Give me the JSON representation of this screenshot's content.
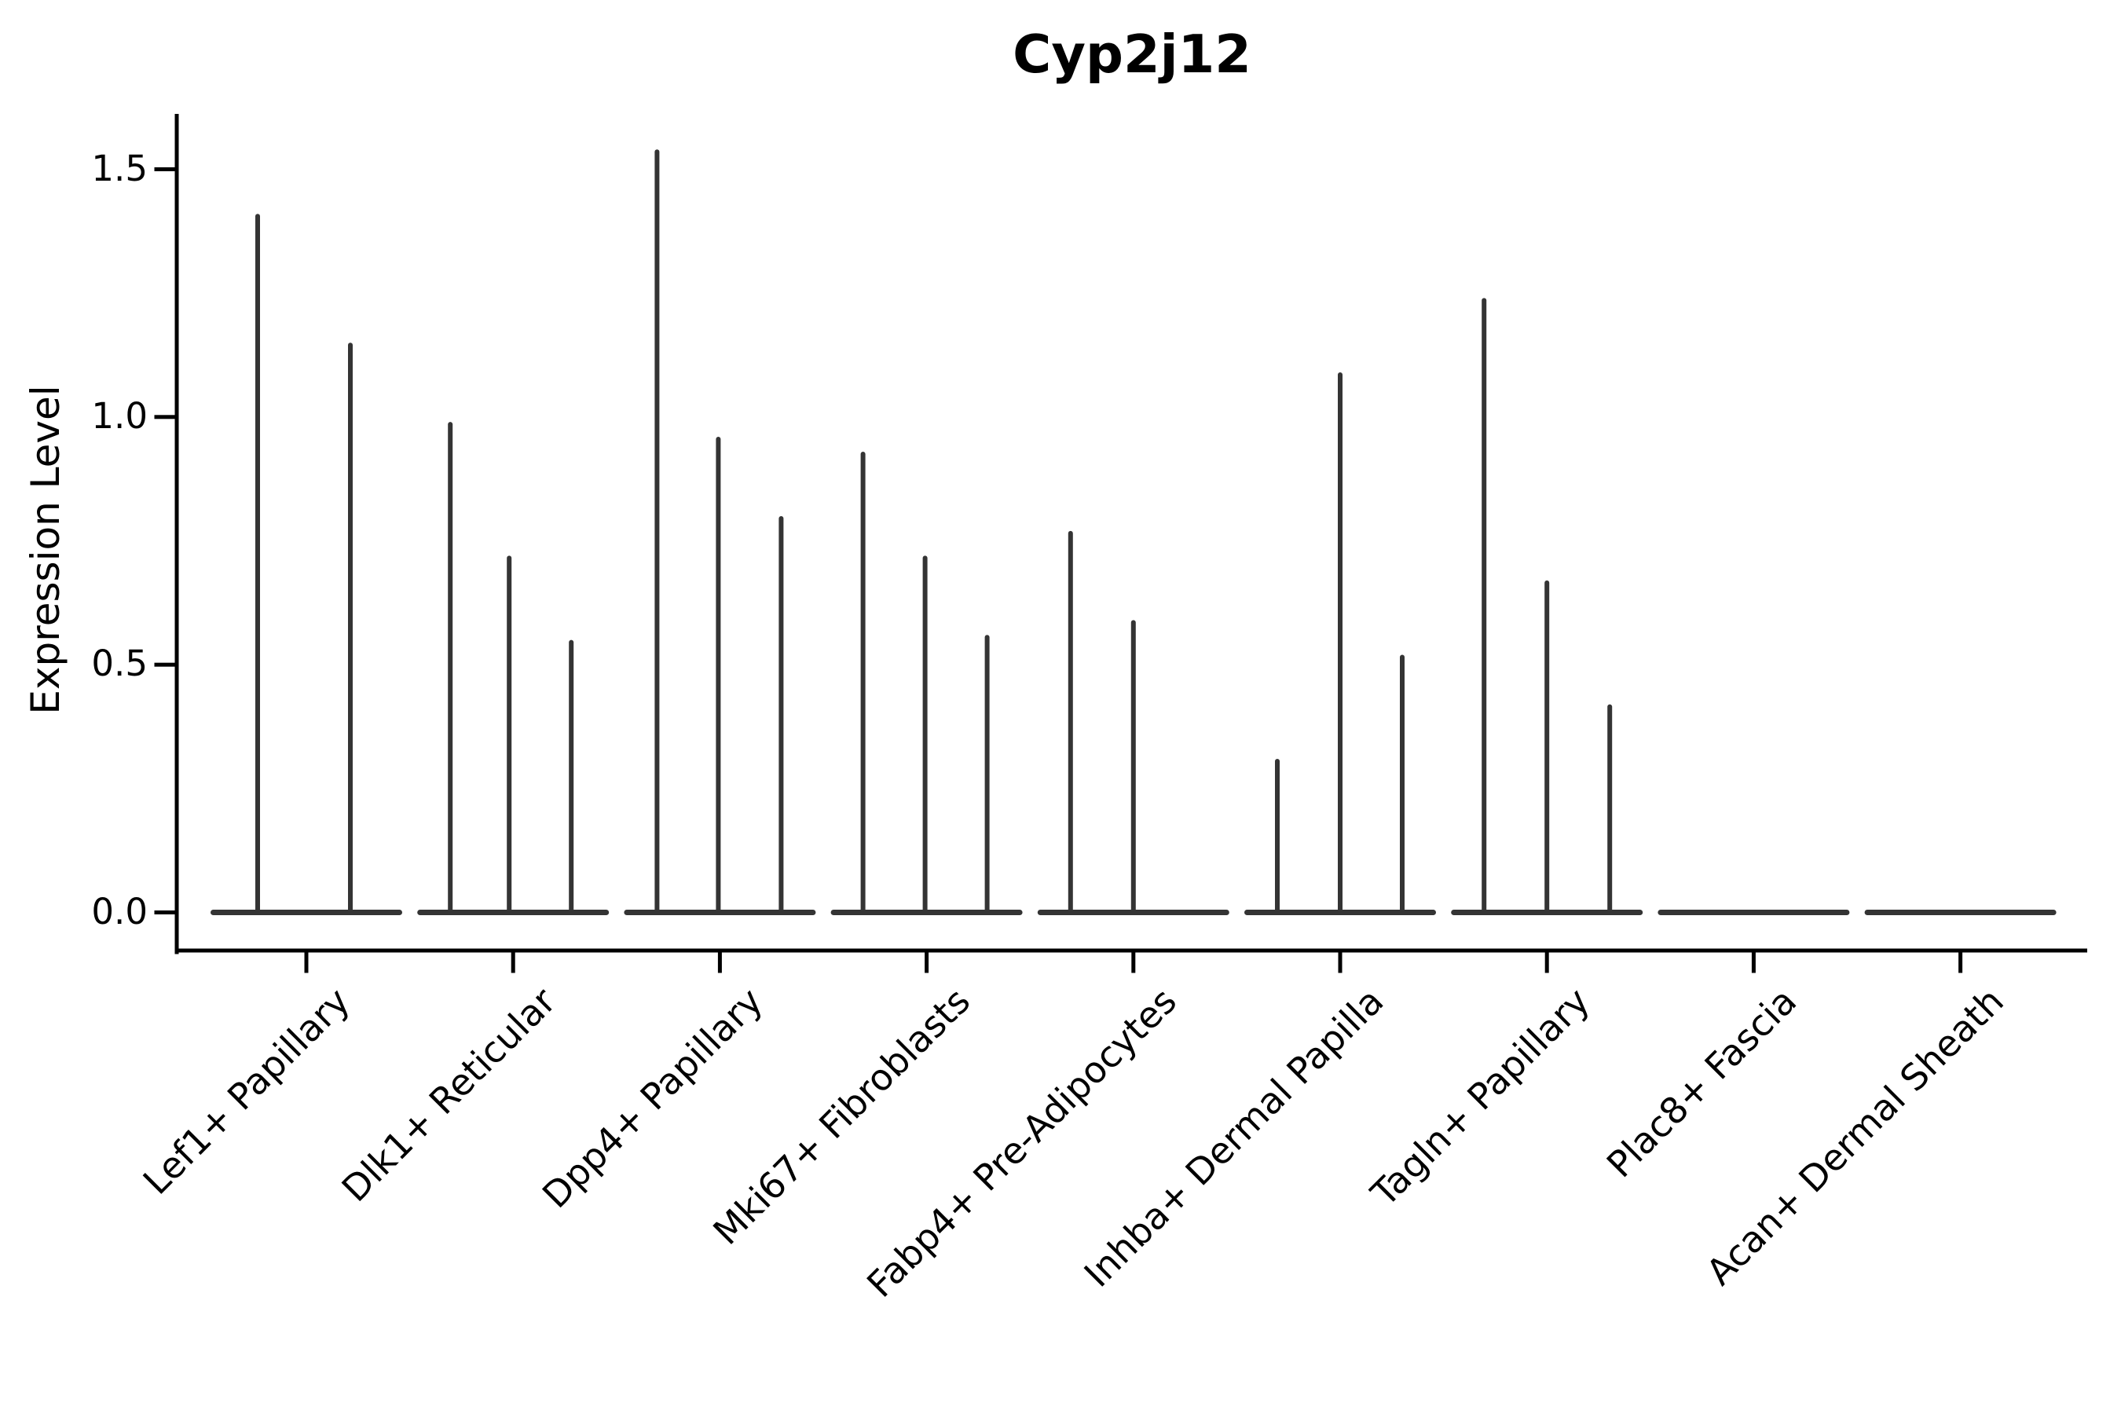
{
  "chart_data": {
    "type": "violin",
    "title": "Cyp2j12",
    "ylabel": "Expression Level",
    "xlabel": "",
    "yticks": [
      0.0,
      0.5,
      1.0,
      1.5
    ],
    "ytick_labels": [
      "1.5",
      "1.0",
      "0.5",
      "0.0"
    ],
    "ylim": [
      -0.08,
      1.62
    ],
    "grid": false,
    "legend": "none",
    "categories": [
      "Lef1+ Papillary",
      "Dlk1+ Reticular",
      "Dpp4+ Papillary",
      "Mki67+ Fibroblasts",
      "Fabp4+ Pre-Adipocytes",
      "Inhba+ Dermal Papilla",
      "Tagln+ Papillary",
      "Plac8+ Fascia",
      "Acan+ Dermal Sheath"
    ],
    "groups": [
      {
        "category": "Lef1+ Papillary",
        "violins": [
          {
            "dx": -62,
            "max": 1.41
          },
          {
            "dx": 56,
            "max": 1.15
          }
        ]
      },
      {
        "category": "Dlk1+ Reticular",
        "violins": [
          {
            "dx": -80,
            "max": 0.99
          },
          {
            "dx": -5,
            "max": 0.72
          },
          {
            "dx": 74,
            "max": 0.55
          }
        ]
      },
      {
        "category": "Dpp4+ Papillary",
        "violins": [
          {
            "dx": -80,
            "max": 1.54
          },
          {
            "dx": -2,
            "max": 0.96
          },
          {
            "dx": 78,
            "max": 0.8
          }
        ]
      },
      {
        "category": "Mki67+ Fibroblasts",
        "violins": [
          {
            "dx": -81,
            "max": 0.93
          },
          {
            "dx": -2,
            "max": 0.72
          },
          {
            "dx": 77,
            "max": 0.56
          }
        ]
      },
      {
        "category": "Fabp4+ Pre-Adipocytes",
        "violins": [
          {
            "dx": -80,
            "max": 0.77
          },
          {
            "dx": 0,
            "max": 0.59
          }
        ]
      },
      {
        "category": "Inhba+ Dermal Papilla",
        "violins": [
          {
            "dx": -80,
            "max": 0.31
          },
          {
            "dx": 0,
            "max": 1.09
          },
          {
            "dx": 79,
            "max": 0.52
          }
        ]
      },
      {
        "category": "Tagln+ Papillary",
        "violins": [
          {
            "dx": -80,
            "max": 1.24
          },
          {
            "dx": 0,
            "max": 0.67
          },
          {
            "dx": 80,
            "max": 0.42
          }
        ]
      },
      {
        "category": "Plac8+ Fascia",
        "violins": []
      },
      {
        "category": "Acan+ Dermal Sheath",
        "violins": []
      }
    ],
    "colors": {
      "violin": "#343434",
      "axis": "#000000",
      "text": "#000000",
      "background": "#ffffff"
    }
  }
}
